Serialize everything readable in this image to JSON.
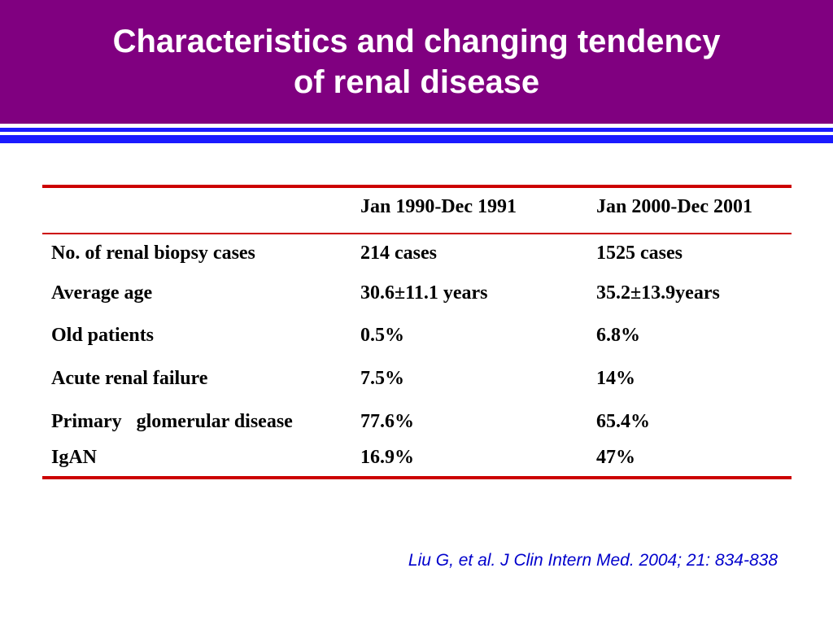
{
  "colors": {
    "header_bg": "#800080",
    "rule_blue": "#1a1aff",
    "table_rule_red": "#cc0000",
    "citation_blue": "#0000cc"
  },
  "slide": {
    "title_line1": "Characteristics and changing tendency",
    "title_line2": "of renal disease",
    "citation": "Liu G, et al. J Clin Intern Med. 2004; 21: 834-838"
  },
  "table": {
    "columns": [
      "",
      "Jan 1990-Dec 1991",
      "Jan 2000-Dec 2001"
    ],
    "rows": [
      [
        "No. of renal biopsy  cases",
        "214 cases",
        "1525 cases"
      ],
      [
        "Average age",
        "30.6±11.1 years",
        "35.2±13.9years"
      ],
      [
        "Old patients",
        "0.5%",
        "6.8%"
      ],
      [
        "Acute renal failure",
        "7.5%",
        "14%"
      ],
      [
        "Primary   glomerular disease",
        "77.6%",
        "65.4%"
      ],
      [
        "IgAN",
        "16.9%",
        "47%"
      ]
    ]
  }
}
